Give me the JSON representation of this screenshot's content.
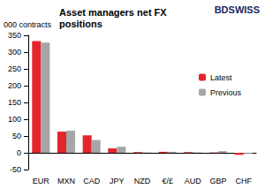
{
  "chart_data": {
    "type": "bar",
    "title": "Asset managers net FX positions",
    "y_label": "000 contracts",
    "annotations": [
      "BDSWISS"
    ],
    "categories": [
      "EUR",
      "MXN",
      "CAD",
      "JPY",
      "NZD",
      "€/£",
      "AUD",
      "GBP",
      "CHF"
    ],
    "series": [
      {
        "name": "Latest",
        "color": "#e3262b",
        "values": [
          333,
          63,
          52,
          13,
          2,
          3,
          2,
          1,
          -6
        ]
      },
      {
        "name": "Previous",
        "color": "#a6a6a6",
        "values": [
          328,
          66,
          38,
          18,
          1,
          3,
          1,
          5,
          -2
        ]
      }
    ],
    "ylim": [
      -50,
      350
    ],
    "yticks": [
      -50,
      0,
      50,
      100,
      150,
      200,
      250,
      300,
      350
    ],
    "grid": false,
    "legend": "right"
  }
}
